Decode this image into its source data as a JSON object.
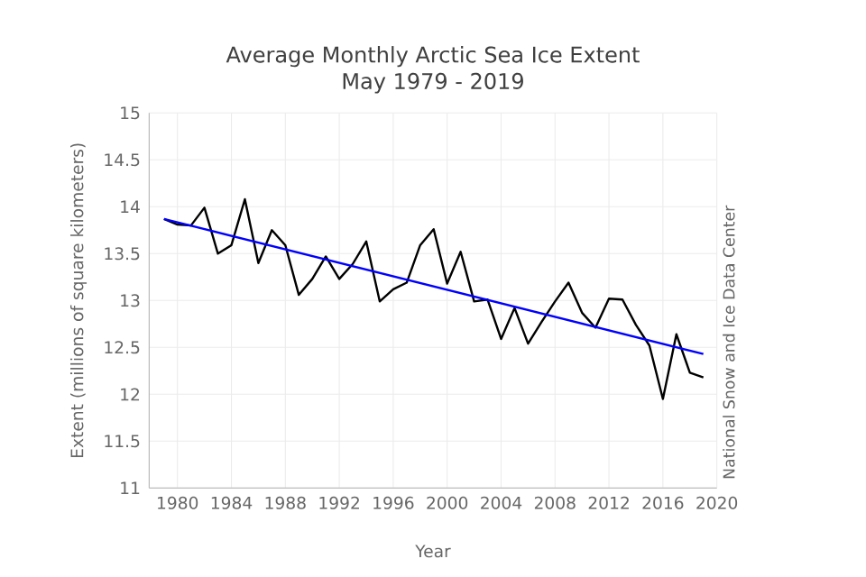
{
  "chart_data": {
    "type": "line",
    "title": "Average Monthly Arctic Sea Ice Extent",
    "subtitle": "May 1979 - 2019",
    "xlabel": "Year",
    "ylabel": "Extent (millions of square kilometers)",
    "annotations": [
      "National Snow and Ice Data Center"
    ],
    "series": [
      {
        "color": "#000000",
        "x": [
          1979,
          1980,
          1981,
          1982,
          1983,
          1984,
          1985,
          1986,
          1987,
          1988,
          1989,
          1990,
          1991,
          1992,
          1993,
          1994,
          1995,
          1996,
          1997,
          1998,
          1999,
          2000,
          2001,
          2002,
          2003,
          2004,
          2005,
          2006,
          2007,
          2008,
          2009,
          2010,
          2011,
          2012,
          2013,
          2014,
          2015,
          2016,
          2017,
          2018,
          2019
        ],
        "values": [
          13.87,
          13.81,
          13.8,
          13.99,
          13.5,
          13.59,
          14.08,
          13.4,
          13.75,
          13.59,
          13.06,
          13.23,
          13.47,
          13.23,
          13.39,
          13.63,
          12.99,
          13.12,
          13.19,
          13.59,
          13.76,
          13.18,
          13.52,
          12.99,
          13.01,
          12.59,
          12.92,
          12.54,
          12.77,
          12.99,
          13.19,
          12.87,
          12.71,
          13.02,
          13.01,
          12.74,
          12.52,
          11.95,
          12.64,
          12.23,
          12.18
        ]
      },
      {
        "color": "#0000ff",
        "x": [
          1979,
          2019
        ],
        "values": [
          13.87,
          12.43
        ]
      }
    ],
    "xlim": [
      1977.9,
      2020
    ],
    "ylim": [
      11,
      15
    ],
    "xticks": [
      1980,
      1984,
      1988,
      1992,
      1996,
      2000,
      2004,
      2008,
      2012,
      2016,
      2020
    ],
    "yticks": [
      11,
      11.5,
      12,
      12.5,
      13,
      13.5,
      14,
      14.5,
      15
    ],
    "grid": true,
    "marker": "none",
    "line_style": "solid"
  }
}
